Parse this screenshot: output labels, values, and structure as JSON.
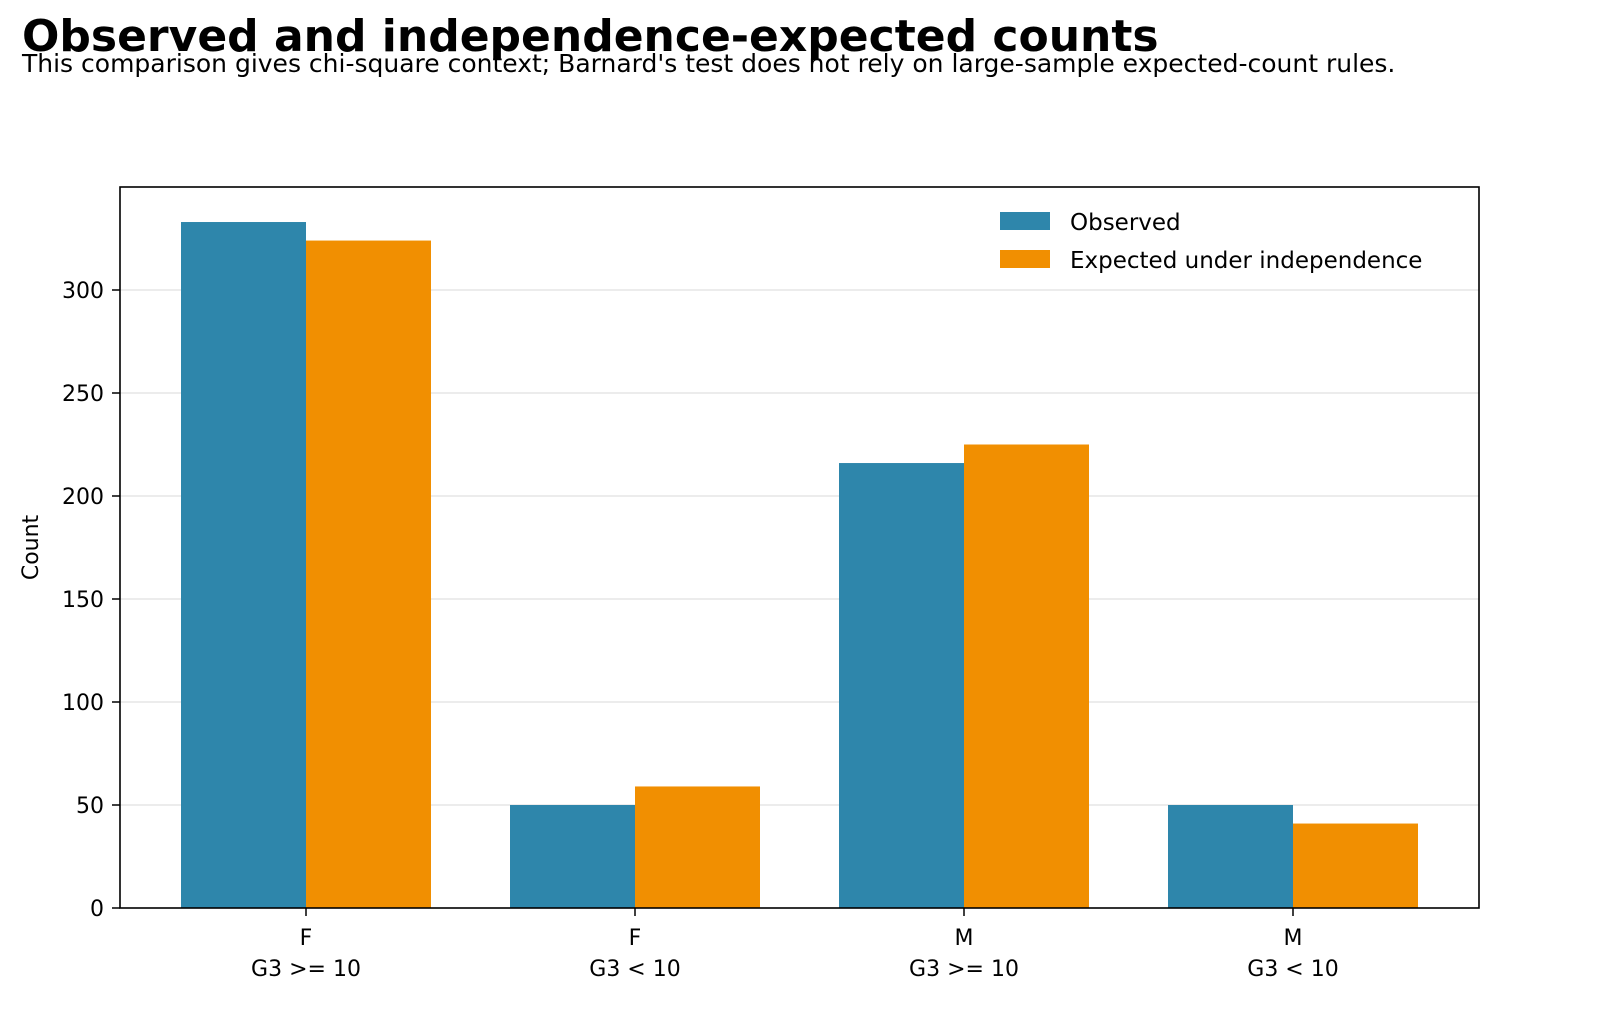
{
  "title": "Observed and independence-expected counts",
  "subtitle": "This comparison gives chi-square context; Barnard's test does not rely on large-sample expected-count rules.",
  "chart_data": {
    "type": "bar",
    "categories": [
      [
        "F",
        "G3 >= 10"
      ],
      [
        "F",
        "G3 < 10"
      ],
      [
        "M",
        "G3 >= 10"
      ],
      [
        "M",
        "G3 < 10"
      ]
    ],
    "series": [
      {
        "name": "Observed",
        "color": "#2e86ab",
        "values": [
          333,
          50,
          216,
          50
        ]
      },
      {
        "name": "Expected under independence",
        "color": "#f18f01",
        "values": [
          324,
          59,
          225,
          41
        ]
      }
    ],
    "ylabel": "Count",
    "xlabel": "",
    "ylim": [
      0,
      350
    ],
    "yticks": [
      0,
      50,
      100,
      150,
      200,
      250,
      300
    ],
    "grid": "horizontal",
    "legend_position": "top-right"
  }
}
